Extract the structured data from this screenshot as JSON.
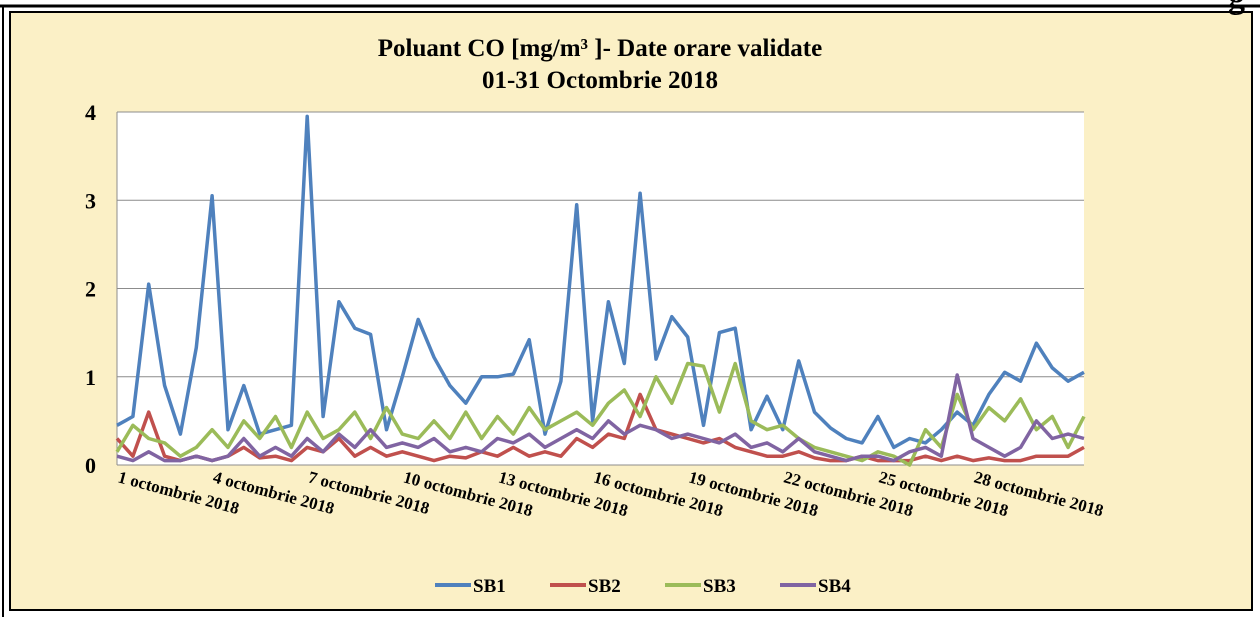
{
  "header_fragment": "g",
  "chart_data": {
    "type": "line",
    "title": "Poluant CO [mg/m³ ]- Date orare validate",
    "subtitle": "01-31 Octombrie 2018",
    "ylim": [
      0,
      4
    ],
    "yticks": [
      0,
      1,
      2,
      3,
      4
    ],
    "grid": true,
    "legend": "bottom",
    "categories": [
      "1 octombrie 2018",
      null,
      null,
      null,
      null,
      null,
      "4 octombrie 2018",
      null,
      null,
      null,
      null,
      null,
      "7 octombrie 2018",
      null,
      null,
      null,
      null,
      null,
      "10 octombrie 2018",
      null,
      null,
      null,
      null,
      null,
      "13 octombrie 2018",
      null,
      null,
      null,
      null,
      null,
      "16 octombrie 2018",
      null,
      null,
      null,
      null,
      null,
      "19 octombrie 2018",
      null,
      null,
      null,
      null,
      null,
      "22 octombrie 2018",
      null,
      null,
      null,
      null,
      null,
      "25 octombrie 2018",
      null,
      null,
      null,
      null,
      null,
      "28 octombrie 2018",
      null,
      null,
      null,
      null,
      null,
      null,
      null
    ],
    "series": [
      {
        "name": "SB1",
        "color": "#4f81bd",
        "values": [
          0.45,
          0.55,
          2.05,
          0.9,
          0.35,
          1.33,
          3.05,
          0.4,
          0.9,
          0.35,
          0.4,
          0.45,
          3.95,
          0.55,
          1.85,
          1.55,
          1.48,
          0.4,
          1.0,
          1.65,
          1.22,
          0.9,
          0.7,
          1.0,
          1.0,
          1.03,
          1.42,
          0.35,
          0.95,
          2.95,
          0.5,
          1.85,
          1.15,
          3.08,
          1.2,
          1.68,
          1.45,
          0.45,
          1.5,
          1.55,
          0.4,
          0.78,
          0.4,
          1.18,
          0.6,
          0.42,
          0.3,
          0.25,
          0.55,
          0.2,
          0.3,
          0.25,
          0.4,
          0.6,
          0.45,
          0.8,
          1.05,
          0.95,
          1.38,
          1.1,
          0.95,
          1.05
        ]
      },
      {
        "name": "SB2",
        "color": "#c0504d",
        "values": [
          0.3,
          0.1,
          0.6,
          0.1,
          0.05,
          0.1,
          0.05,
          0.1,
          0.2,
          0.08,
          0.1,
          0.05,
          0.2,
          0.15,
          0.3,
          0.1,
          0.2,
          0.1,
          0.15,
          0.1,
          0.05,
          0.1,
          0.08,
          0.15,
          0.1,
          0.2,
          0.1,
          0.15,
          0.1,
          0.3,
          0.2,
          0.35,
          0.3,
          0.8,
          0.4,
          0.35,
          0.3,
          0.25,
          0.3,
          0.2,
          0.15,
          0.1,
          0.1,
          0.15,
          0.08,
          0.05,
          0.05,
          0.1,
          0.05,
          0.05,
          0.05,
          0.1,
          0.05,
          0.1,
          0.05,
          0.08,
          0.05,
          0.05,
          0.1,
          0.1,
          0.1,
          0.2
        ]
      },
      {
        "name": "SB3",
        "color": "#9bbb59",
        "values": [
          0.15,
          0.45,
          0.3,
          0.25,
          0.1,
          0.2,
          0.4,
          0.2,
          0.5,
          0.3,
          0.55,
          0.2,
          0.6,
          0.3,
          0.4,
          0.6,
          0.3,
          0.65,
          0.35,
          0.3,
          0.5,
          0.3,
          0.6,
          0.3,
          0.55,
          0.35,
          0.65,
          0.4,
          0.5,
          0.6,
          0.45,
          0.7,
          0.85,
          0.55,
          1.0,
          0.7,
          1.15,
          1.12,
          0.6,
          1.15,
          0.5,
          0.4,
          0.45,
          0.3,
          0.2,
          0.15,
          0.1,
          0.05,
          0.15,
          0.1,
          0.0,
          0.4,
          0.2,
          0.8,
          0.4,
          0.65,
          0.5,
          0.75,
          0.4,
          0.55,
          0.2,
          0.55
        ]
      },
      {
        "name": "SB4",
        "color": "#8064a2",
        "values": [
          0.1,
          0.05,
          0.15,
          0.05,
          0.05,
          0.1,
          0.05,
          0.1,
          0.3,
          0.1,
          0.2,
          0.1,
          0.3,
          0.15,
          0.35,
          0.2,
          0.4,
          0.2,
          0.25,
          0.2,
          0.3,
          0.15,
          0.2,
          0.15,
          0.3,
          0.25,
          0.35,
          0.2,
          0.3,
          0.4,
          0.3,
          0.5,
          0.35,
          0.45,
          0.4,
          0.3,
          0.35,
          0.3,
          0.25,
          0.35,
          0.2,
          0.25,
          0.15,
          0.3,
          0.15,
          0.1,
          0.05,
          0.1,
          0.1,
          0.05,
          0.15,
          0.2,
          0.1,
          1.02,
          0.3,
          0.2,
          0.1,
          0.2,
          0.5,
          0.3,
          0.35,
          0.3
        ]
      }
    ]
  }
}
